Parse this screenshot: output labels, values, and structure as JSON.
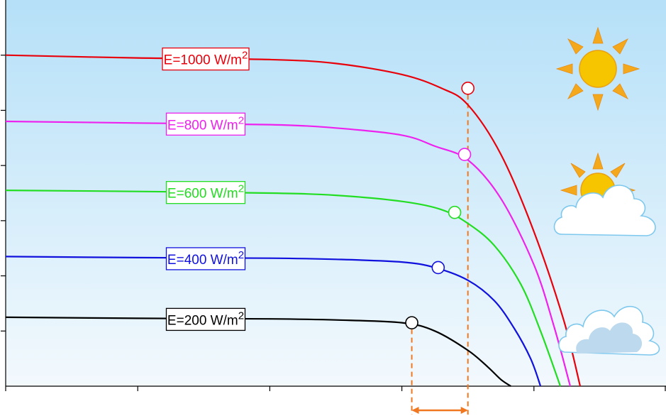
{
  "chart_data": {
    "type": "line",
    "title": "",
    "xlabel": "",
    "ylabel": "",
    "xlim": [
      0,
      10
    ],
    "ylim": [
      0,
      7
    ],
    "x_ticks": [
      0,
      2,
      4,
      6,
      8,
      10
    ],
    "y_ticks": [
      0,
      1,
      2,
      3,
      4,
      5,
      6
    ],
    "tick_labels_shown": false,
    "grid": false,
    "background": "sky-gradient",
    "series": [
      {
        "name": "E=1000 W/m2",
        "label_main": "E=1000 W/m",
        "label_sup": "2",
        "color": "#e8000b",
        "x": [
          0,
          2,
          4,
          5,
          6,
          6.6,
          7.0,
          7.5,
          8.0,
          8.45,
          8.7
        ],
        "y": [
          6.0,
          5.95,
          5.92,
          5.85,
          5.65,
          5.4,
          5.1,
          4.2,
          2.8,
          1.2,
          0.0
        ],
        "mpp": {
          "x": 7.0,
          "y": 5.4
        }
      },
      {
        "name": "E=800 W/m2",
        "label_main": "E=800 W/m",
        "label_sup": "2",
        "color": "#ee22ee",
        "x": [
          0,
          2,
          4,
          5,
          6,
          6.5,
          7.0,
          7.5,
          8.0,
          8.3,
          8.55
        ],
        "y": [
          4.8,
          4.77,
          4.74,
          4.68,
          4.55,
          4.35,
          4.1,
          3.4,
          2.2,
          1.1,
          0.0
        ],
        "mpp": {
          "x": 6.95,
          "y": 4.2
        }
      },
      {
        "name": "E=600 W/m2",
        "label_main": "E=600 W/m",
        "label_sup": "2",
        "color": "#22dd22",
        "x": [
          0,
          2,
          4,
          5,
          6,
          6.6,
          7.0,
          7.4,
          7.8,
          8.1,
          8.4
        ],
        "y": [
          3.55,
          3.53,
          3.5,
          3.46,
          3.35,
          3.2,
          2.95,
          2.55,
          1.85,
          1.0,
          0.0
        ],
        "mpp": {
          "x": 6.8,
          "y": 3.15
        }
      },
      {
        "name": "E=400 W/m2",
        "label_main": "E=400 W/m",
        "label_sup": "2",
        "color": "#1111dd",
        "x": [
          0,
          2,
          4,
          5,
          6,
          6.5,
          7.0,
          7.4,
          7.7,
          7.95,
          8.1
        ],
        "y": [
          2.35,
          2.33,
          2.32,
          2.3,
          2.25,
          2.15,
          1.92,
          1.55,
          1.05,
          0.5,
          0.0
        ],
        "mpp": {
          "x": 6.55,
          "y": 2.15
        }
      },
      {
        "name": "E=200 W/m2",
        "label_main": "E=200 W/m",
        "label_sup": "2",
        "color": "#000000",
        "x": [
          0,
          2,
          4,
          5,
          6.0,
          6.5,
          7.0,
          7.3,
          7.5,
          7.65
        ],
        "y": [
          1.25,
          1.23,
          1.22,
          1.2,
          1.15,
          1.0,
          0.65,
          0.35,
          0.12,
          0.0
        ],
        "mpp": {
          "x": 6.15,
          "y": 1.15
        }
      }
    ],
    "annotations": [
      {
        "kind": "dashed-drop-line",
        "color": "#f07820",
        "from_series": "E=1000 W/m2"
      },
      {
        "kind": "dashed-drop-line",
        "color": "#f07820",
        "from_series": "E=200 W/m2"
      },
      {
        "kind": "double-arrow",
        "color": "#f07820",
        "between": [
          "E=200 W/m2",
          "E=1000 W/m2"
        ]
      }
    ],
    "weather_icons": [
      "sun-icon",
      "sun-behind-cloud-icon",
      "cloud-icon"
    ]
  }
}
